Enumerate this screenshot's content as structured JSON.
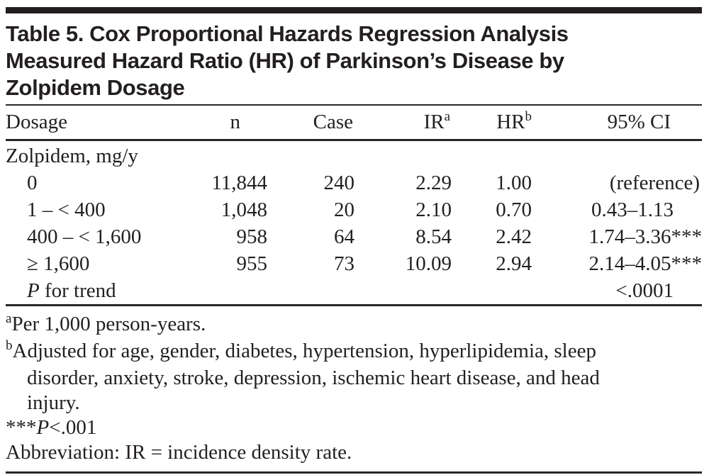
{
  "title_lines": [
    "Table 5. Cox Proportional Hazards Regression Analysis",
    "Measured Hazard Ratio (HR) of Parkinson’s Disease by",
    "Zolpidem Dosage"
  ],
  "table": {
    "columns": [
      {
        "key": "dosage",
        "label": "Dosage"
      },
      {
        "key": "n",
        "label": "n"
      },
      {
        "key": "case",
        "label": "Case"
      },
      {
        "key": "ir",
        "label": "IR",
        "sup": "a"
      },
      {
        "key": "hr",
        "label": "HR",
        "sup": "b"
      },
      {
        "key": "ci",
        "label": "95% CI"
      }
    ],
    "rows": [
      {
        "indent": false,
        "dosage": "Zolpidem, mg/y",
        "n": "",
        "case": "",
        "ir": "",
        "hr": "",
        "ci": ""
      },
      {
        "indent": true,
        "dosage": "0",
        "n": "11,844",
        "case": "240",
        "ir": "2.29",
        "hr": "1.00",
        "ci": "(reference)",
        "ci_flush": true
      },
      {
        "indent": true,
        "dosage": "1 – < 400",
        "n": "1,048",
        "case": "20",
        "ir": "2.10",
        "hr": "0.70",
        "ci": "0.43–1.13"
      },
      {
        "indent": true,
        "dosage": "400 – < 1,600",
        "n": "958",
        "case": "64",
        "ir": "8.54",
        "hr": "2.42",
        "ci": "1.74–3.36",
        "ci_sup": "***"
      },
      {
        "indent": true,
        "dosage": "≥ 1,600",
        "n": "955",
        "case": "73",
        "ir": "10.09",
        "hr": "2.94",
        "ci": "2.14–4.05",
        "ci_sup": "***"
      },
      {
        "indent": true,
        "dosage_italic": "P",
        "dosage": " for trend",
        "n": "",
        "case": "",
        "ir": "",
        "hr": "",
        "ci": "<.0001"
      }
    ]
  },
  "footnotes": [
    {
      "marker": "a",
      "marker_is_sup": true,
      "lines": [
        "Per 1,000 person-years."
      ]
    },
    {
      "marker": "b",
      "marker_is_sup": true,
      "lines": [
        "Adjusted for age, gender, diabetes, hypertension, hyperlipidemia, sleep",
        "disorder, anxiety, stroke, depression, ischemic heart disease, and head",
        "injury."
      ]
    },
    {
      "marker": "***",
      "marker_is_sup": false,
      "italic": "P",
      "text": "<.001"
    },
    {
      "text": "Abbreviation: IR = incidence density rate."
    }
  ],
  "colors": {
    "text": "#231f20",
    "rule": "#2a2627",
    "top_bar": "#231f20",
    "background": "#ffffff"
  }
}
